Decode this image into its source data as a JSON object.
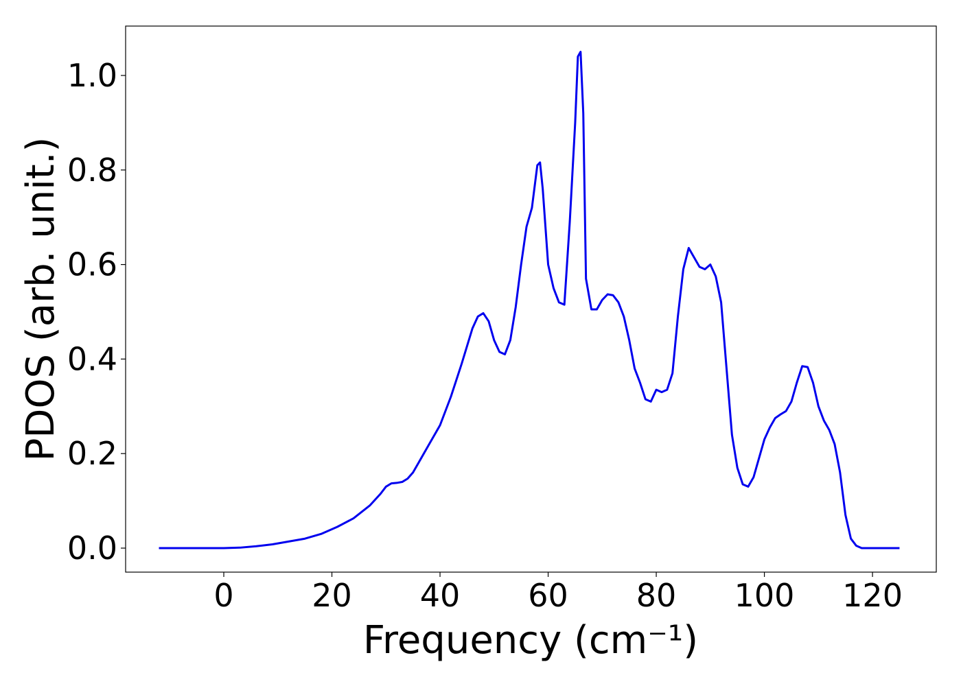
{
  "chart_data": {
    "type": "line",
    "xlabel": "Frequency (cm⁻¹)",
    "ylabel": "PDOS (arb. unit.)",
    "x": [
      -12,
      0,
      3,
      6,
      9,
      12,
      15,
      18,
      21,
      24,
      27,
      29,
      30,
      31,
      32,
      33,
      34,
      35,
      36,
      38,
      40,
      42,
      44,
      46,
      47,
      48,
      49,
      50,
      51,
      52,
      53,
      54,
      55,
      56,
      57,
      58,
      58.5,
      59,
      60,
      61,
      62,
      63,
      64,
      65,
      65.5,
      66,
      66.5,
      67,
      68,
      69,
      70,
      71,
      72,
      73,
      74,
      75,
      76,
      77,
      78,
      79,
      80,
      81,
      82,
      83,
      84,
      85,
      86,
      87,
      88,
      89,
      90,
      91,
      92,
      93,
      94,
      95,
      96,
      97,
      98,
      99,
      100,
      101,
      102,
      103,
      104,
      105,
      106,
      107,
      108,
      109,
      110,
      111,
      112,
      113,
      114,
      115,
      116,
      117,
      118,
      125
    ],
    "series": [
      {
        "color": "#0000ee",
        "values": [
          0,
          0,
          0.001,
          0.004,
          0.008,
          0.014,
          0.02,
          0.03,
          0.045,
          0.063,
          0.09,
          0.115,
          0.13,
          0.137,
          0.138,
          0.14,
          0.147,
          0.16,
          0.18,
          0.22,
          0.26,
          0.32,
          0.39,
          0.465,
          0.49,
          0.497,
          0.48,
          0.44,
          0.415,
          0.41,
          0.44,
          0.51,
          0.6,
          0.68,
          0.72,
          0.81,
          0.816,
          0.76,
          0.6,
          0.55,
          0.52,
          0.515,
          0.69,
          0.9,
          1.04,
          1.05,
          0.92,
          0.57,
          0.505,
          0.505,
          0.525,
          0.537,
          0.535,
          0.52,
          0.49,
          0.44,
          0.38,
          0.35,
          0.315,
          0.31,
          0.335,
          0.33,
          0.335,
          0.37,
          0.49,
          0.59,
          0.635,
          0.615,
          0.595,
          0.59,
          0.6,
          0.575,
          0.52,
          0.38,
          0.24,
          0.17,
          0.135,
          0.13,
          0.15,
          0.19,
          0.23,
          0.255,
          0.275,
          0.283,
          0.29,
          0.31,
          0.35,
          0.385,
          0.383,
          0.35,
          0.3,
          0.27,
          0.25,
          0.22,
          0.16,
          0.07,
          0.02,
          0.005,
          0,
          0
        ]
      }
    ],
    "xlim": [
      -18.16,
      131.8
    ],
    "ylim": [
      -0.0508,
      1.1045
    ],
    "xticks": [
      0,
      20,
      40,
      60,
      80,
      100,
      120
    ],
    "yticks": [
      {
        "value": 0,
        "label": "0.0"
      },
      0.2,
      0.4,
      0.6,
      0.8,
      {
        "value": 1,
        "label": "1.0"
      }
    ]
  }
}
